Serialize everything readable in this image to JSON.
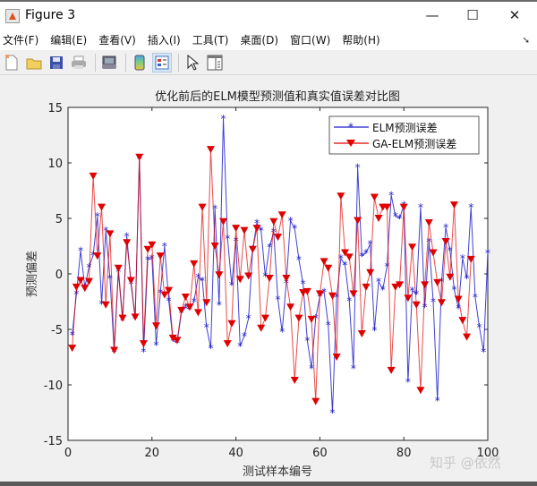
{
  "window": {
    "title": "Figure 3",
    "minimize": "—",
    "maximize": "☐",
    "close": "✕"
  },
  "menu": [
    {
      "label": "文件(F)"
    },
    {
      "label": "编辑(E)"
    },
    {
      "label": "查看(V)"
    },
    {
      "label": "插入(I)"
    },
    {
      "label": "工具(T)"
    },
    {
      "label": "桌面(D)"
    },
    {
      "label": "窗口(W)"
    },
    {
      "label": "帮助(H)"
    }
  ],
  "toolbar": [
    {
      "icon": "new-figure-icon"
    },
    {
      "icon": "open-file-icon"
    },
    {
      "icon": "save-icon"
    },
    {
      "icon": "print-icon"
    },
    {
      "icon": "link-plot-icon"
    },
    {
      "icon": "colorbar-icon"
    },
    {
      "icon": "legend-icon"
    },
    {
      "icon": "pointer-icon"
    },
    {
      "icon": "property-inspector-icon"
    }
  ],
  "watermark": "知乎 @依然",
  "chart_data": {
    "type": "line",
    "title": "优化前后的ELM模型预测值和真实值误差对比图",
    "xlabel": "测试样本编号",
    "ylabel": "预测偏差",
    "xlim": [
      0,
      100
    ],
    "ylim": [
      -15,
      15
    ],
    "xticks": [
      0,
      20,
      40,
      60,
      80,
      100
    ],
    "yticks": [
      -15,
      -10,
      -5,
      0,
      5,
      10,
      15
    ],
    "grid": false,
    "legend_position": "upper right",
    "series": [
      {
        "name": "ELM预测误差",
        "color": "#1f1fcc",
        "marker": "asterisk",
        "values": [
          -5.5,
          -1.8,
          2.1,
          -1.2,
          0.6,
          1.7,
          5.2,
          -2.7,
          3.9,
          -0.4,
          -7,
          0.2,
          -4.2,
          3.4,
          -0.9,
          -4,
          10.4,
          -7,
          1.3,
          1.4,
          -6.4,
          -1.7,
          2.5,
          -2.4,
          -6,
          -6.2,
          -3.5,
          -3,
          -3.2,
          -2.5,
          -0.3,
          -0.6,
          -4.8,
          -6.7,
          5.9,
          -2.8,
          14,
          3.2,
          -1,
          3,
          -6.5,
          -5.6,
          -4,
          2.2,
          4.6,
          3.9,
          -0.2,
          2.4,
          3.8,
          -2.3,
          -5.2,
          -0.8,
          4.8,
          4.1,
          1.3,
          -0.9,
          -6,
          -8.5,
          -4,
          -2,
          -1.6,
          -4.6,
          -12.5,
          -2.1,
          1.4,
          0.8,
          -2.4,
          -8.5,
          9.6,
          1.6,
          1.9,
          2.7,
          -5.1,
          -0.7,
          -1.4,
          0.7,
          7.1,
          5.2,
          5,
          6.2,
          -9.7,
          -1.5,
          -1.8,
          6,
          -3,
          2.9,
          -2.5,
          -11.4,
          -0.7,
          4.2,
          2.1,
          -1.4,
          -3.1,
          1.4,
          -0.4,
          6,
          -2.1,
          -4.8,
          -7,
          1.9
        ],
        "note": "values estimated from pixel positions"
      },
      {
        "name": "GA-ELM预测误差",
        "color": "#e00000",
        "marker": "triangle-down",
        "values": [
          -6.7,
          -1.2,
          -0.6,
          -1.3,
          -0.7,
          8.8,
          1.6,
          6,
          -2.8,
          3.6,
          -6.9,
          0.5,
          -4,
          2.8,
          -0.6,
          -3.9,
          10.5,
          -6.3,
          2.2,
          2.6,
          -4.7,
          1.6,
          -1.9,
          -1.5,
          -5.8,
          -6,
          -3.3,
          -2.1,
          -3,
          0.9,
          -3.5,
          6,
          -2.6,
          11.2,
          2.5,
          -0.1,
          4.7,
          -6.3,
          -4.5,
          4.1,
          -0.5,
          3.9,
          -0.2,
          2.2,
          4.1,
          -4.9,
          -4,
          -0.4,
          4.7,
          3.3,
          5.3,
          -0.4,
          -3,
          -9.6,
          -4,
          -1.7,
          -1.6,
          -4.1,
          -11.5,
          -1.8,
          1.1,
          0.5,
          -2,
          -7.5,
          7,
          1.9,
          1.5,
          -1.8,
          4.8,
          -5.4,
          -1.2,
          0.1,
          6.9,
          5,
          6,
          6,
          -8.7,
          -1.2,
          -1,
          6,
          -2.2,
          2.4,
          -2.8,
          -10.5,
          -1,
          4.6,
          1.9,
          -0.8,
          -2.6,
          2.9,
          -0.3,
          6.2,
          -2.3,
          -4.2,
          -5.7,
          1.3
        ],
        "note": "values estimated from pixel positions"
      }
    ]
  }
}
